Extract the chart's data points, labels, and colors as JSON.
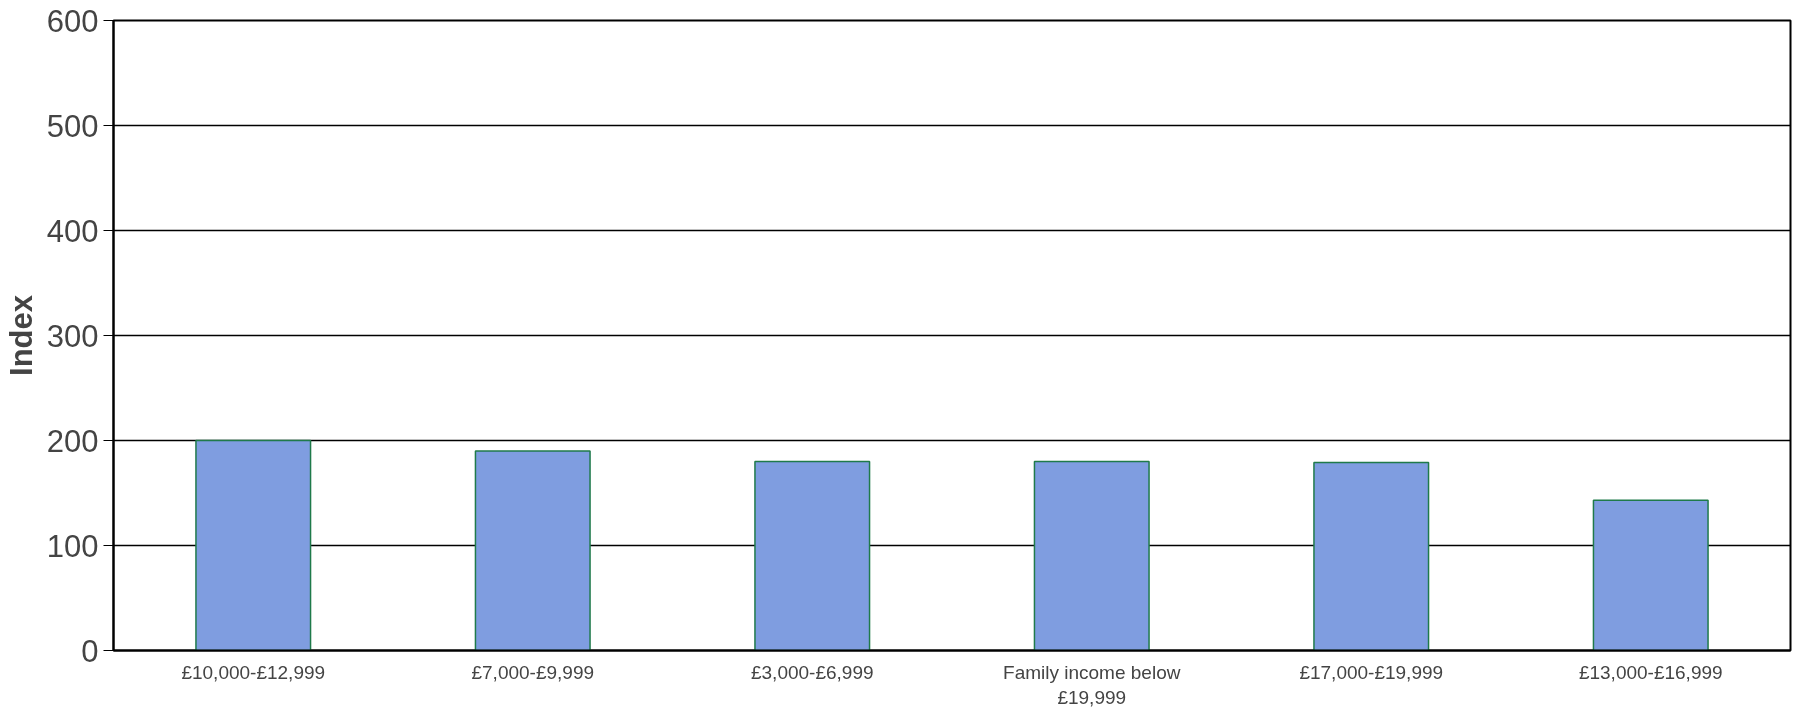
{
  "chart_data": {
    "type": "bar",
    "ylabel": "Index",
    "categories": [
      "£10,000-£12,999",
      "£7,000-£9,999",
      "£3,000-£6,999",
      "Family income below £19,999",
      "£17,000-£19,999",
      "£13,000-£16,999"
    ],
    "values": [
      200,
      190,
      180,
      180,
      179,
      143
    ],
    "color": "#7f9de0",
    "ylim": [
      0,
      600
    ],
    "yticks": [
      0,
      100,
      200,
      300,
      400,
      500,
      600
    ],
    "grid": "y"
  }
}
